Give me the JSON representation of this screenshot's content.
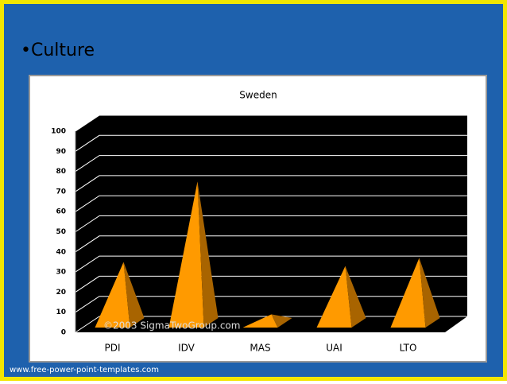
{
  "slide": {
    "heading": "•Culture",
    "footer": "www.free-power-point-templates.com"
  },
  "chart_data": {
    "type": "pyramid",
    "title": "Sweden",
    "categories": [
      "PDI",
      "IDV",
      "MAS",
      "UAI",
      "LTO"
    ],
    "values": [
      31,
      71,
      5,
      29,
      33
    ],
    "color": "#ff9a00",
    "ylim": [
      0,
      100
    ],
    "yticks": [
      0,
      10,
      20,
      30,
      40,
      50,
      60,
      70,
      80,
      90,
      100
    ],
    "grid": true,
    "annotation": "©2003 SigmaTwoGroup.com"
  }
}
